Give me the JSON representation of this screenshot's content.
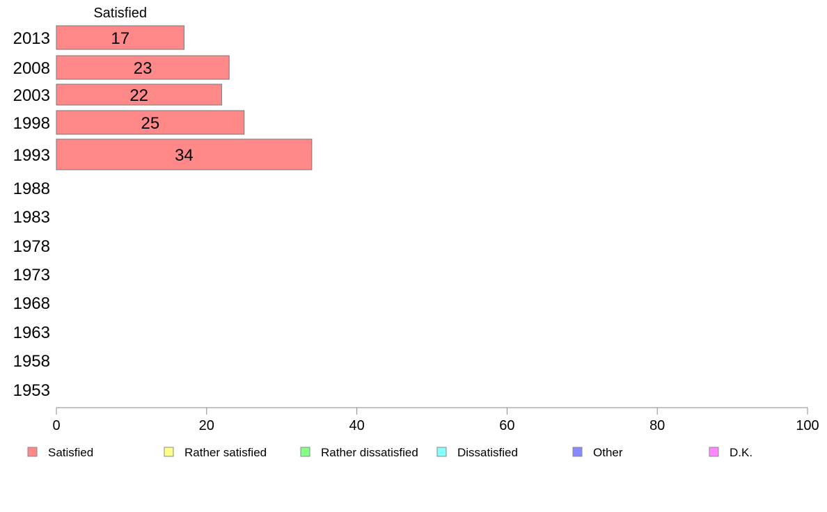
{
  "chart_data": {
    "type": "bar",
    "orientation": "horizontal",
    "stacked": true,
    "categories": [
      "2013",
      "2008",
      "2003",
      "1998",
      "1993",
      "1988",
      "1983",
      "1978",
      "1973",
      "1968",
      "1963",
      "1958",
      "1953"
    ],
    "series": [
      {
        "name": "Satisfied",
        "color": "#ff8888",
        "values": [
          17,
          23,
          22,
          25,
          34,
          null,
          null,
          null,
          null,
          null,
          null,
          null,
          null
        ]
      },
      {
        "name": "Rather satisfied",
        "color": "#ffff88",
        "values": [
          null,
          null,
          null,
          null,
          null,
          null,
          null,
          null,
          null,
          null,
          null,
          null,
          null
        ]
      },
      {
        "name": "Rather dissatisfied",
        "color": "#88ff88",
        "values": [
          null,
          null,
          null,
          null,
          null,
          null,
          null,
          null,
          null,
          null,
          null,
          null,
          null
        ]
      },
      {
        "name": "Dissatisfied",
        "color": "#88ffff",
        "values": [
          null,
          null,
          null,
          null,
          null,
          null,
          null,
          null,
          null,
          null,
          null,
          null,
          null
        ]
      },
      {
        "name": "Other",
        "color": "#8888ff",
        "values": [
          null,
          null,
          null,
          null,
          null,
          null,
          null,
          null,
          null,
          null,
          null,
          null,
          null
        ]
      },
      {
        "name": "D.K.",
        "color": "#ff88ff",
        "values": [
          null,
          null,
          null,
          null,
          null,
          null,
          null,
          null,
          null,
          null,
          null,
          null,
          null
        ]
      }
    ],
    "top_labels": [
      "Satisfied"
    ],
    "xlim": [
      0,
      100
    ],
    "xticks": [
      0,
      20,
      40,
      60,
      80,
      100
    ],
    "grid": false,
    "legend": "bottom"
  }
}
